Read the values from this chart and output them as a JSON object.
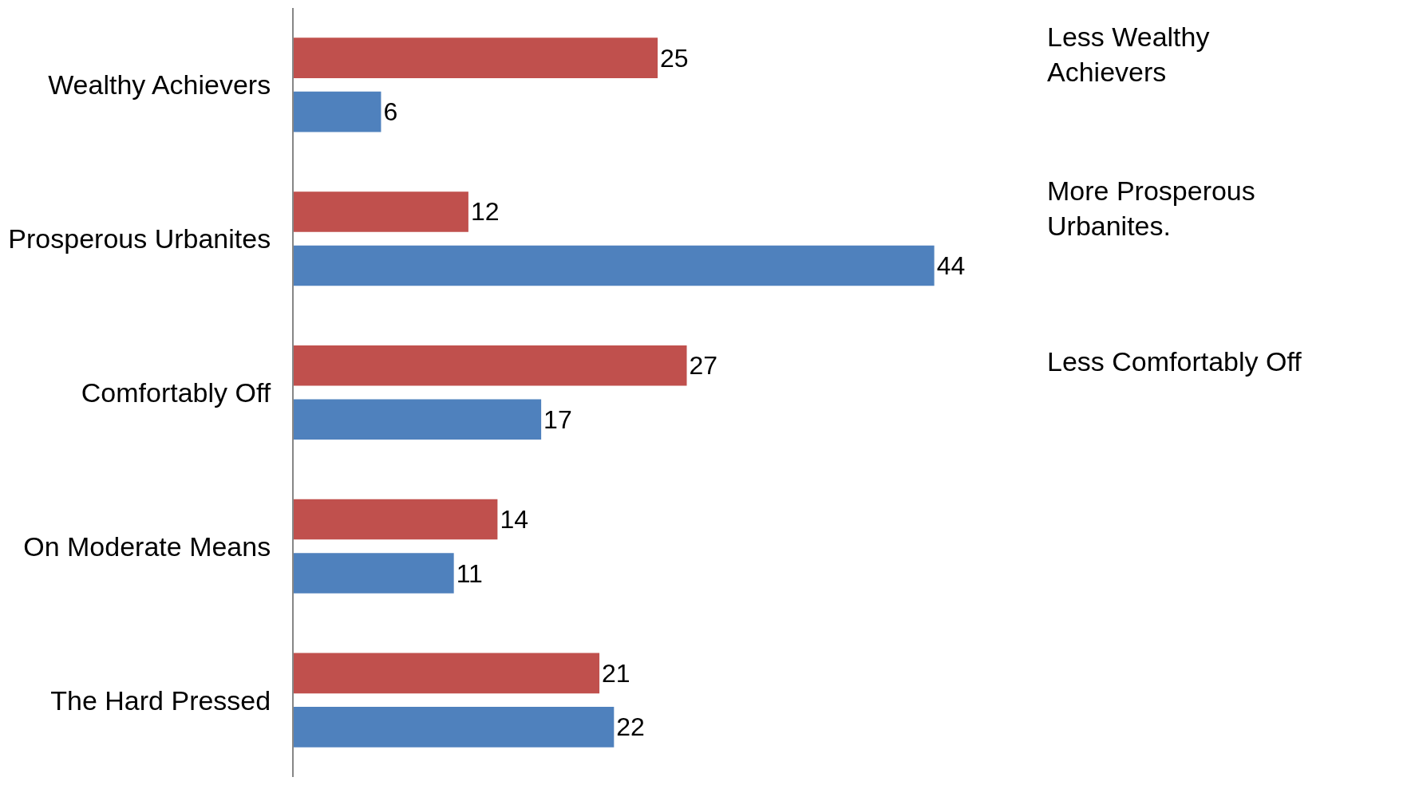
{
  "chart_data": {
    "type": "bar",
    "orientation": "horizontal",
    "categories": [
      "Wealthy Achievers",
      "Prosperous Urbanites",
      "Comfortably Off",
      "On Moderate Means",
      "The Hard Pressed"
    ],
    "series": [
      {
        "color": "#c0504d",
        "values": [
          25,
          12,
          27,
          14,
          21
        ]
      },
      {
        "color": "#4f81bd",
        "values": [
          6,
          44,
          17,
          11,
          22
        ]
      }
    ],
    "data_labels": true,
    "annotations": [
      "Less Wealthy Achievers",
      "More Prosperous Urbanites.",
      "Less Comfortably Off"
    ]
  }
}
